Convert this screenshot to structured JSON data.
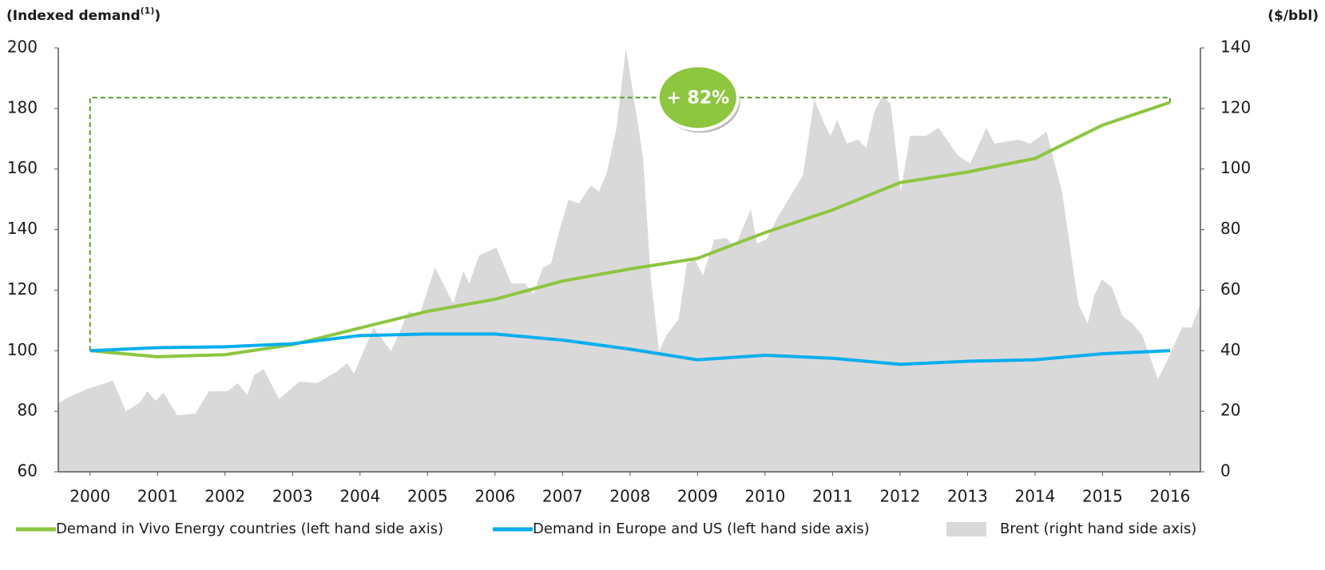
{
  "chart_data": {
    "type": "line",
    "y_label": "(Indexed demand(1))",
    "y2_label": "($/bbl)",
    "annotation": "+ 82%",
    "xlim": [
      1999.53,
      2016.45
    ],
    "xticks": [
      2000,
      2001,
      2002,
      2003,
      2004,
      2005,
      2006,
      2007,
      2008,
      2009,
      2010,
      2011,
      2012,
      2013,
      2014,
      2015,
      2016
    ],
    "ylim": [
      60,
      200
    ],
    "yticks": [
      60,
      80,
      100,
      120,
      140,
      160,
      180,
      200
    ],
    "y2lim": [
      0,
      140
    ],
    "y2ticks": [
      0,
      20,
      40,
      60,
      80,
      100,
      120,
      140
    ],
    "legend": "bottom",
    "series": [
      {
        "name": "Demand in Vivo Energy countries (left hand side axis)",
        "color": "#8dc63f",
        "type": "line",
        "x": [
          2000,
          2001,
          2002,
          2003,
          2004,
          2005,
          2006,
          2007,
          2008,
          2009,
          2010,
          2011,
          2012,
          2013,
          2014,
          2015,
          2016
        ],
        "values": [
          100,
          98,
          98.7,
          102,
          107.5,
          113,
          117,
          123,
          127,
          130.5,
          139,
          146.5,
          155.5,
          159,
          163.5,
          174.5,
          182
        ]
      },
      {
        "name": "Demand in Europe and US (left hand side axis)",
        "color": "#00aeef",
        "type": "line",
        "x": [
          2000,
          2001,
          2002,
          2003,
          2004,
          2005,
          2006,
          2007,
          2008,
          2009,
          2010,
          2011,
          2012,
          2013,
          2014,
          2015,
          2016
        ],
        "values": [
          100,
          101,
          101.3,
          102.3,
          105,
          105.5,
          105.5,
          103.5,
          100.5,
          97,
          98.5,
          97.5,
          95.5,
          96.5,
          97,
          99,
          100
        ]
      },
      {
        "name": "Brent (right hand side axis)",
        "color": "#d9d9d9",
        "type": "area",
        "axis": "y2",
        "x": [
          1999.53,
          1999.67,
          1999.96,
          2000.15,
          2000.34,
          2000.53,
          2000.73,
          2000.85,
          2000.97,
          2001.09,
          2001.29,
          2001.56,
          2001.76,
          2002.04,
          2002.19,
          2002.33,
          2002.43,
          2002.57,
          2002.8,
          2003.1,
          2003.37,
          2003.66,
          2003.81,
          2003.91,
          2004.2,
          2004.46,
          2004.72,
          2004.88,
          2005.11,
          2005.38,
          2005.53,
          2005.62,
          2005.76,
          2006.02,
          2006.24,
          2006.45,
          2006.57,
          2006.71,
          2006.83,
          2006.95,
          2007.09,
          2007.24,
          2007.42,
          2007.54,
          2007.66,
          2007.8,
          2007.94,
          2008.07,
          2008.19,
          2008.31,
          2008.43,
          2008.54,
          2008.72,
          2008.84,
          2008.96,
          2009.08,
          2009.25,
          2009.43,
          2009.55,
          2009.79,
          2009.88,
          2010.02,
          2010.2,
          2010.56,
          2010.73,
          2010.88,
          2010.97,
          2011.07,
          2011.21,
          2011.38,
          2011.5,
          2011.62,
          2011.74,
          2011.86,
          2012.01,
          2012.15,
          2012.39,
          2012.57,
          2012.86,
          2013.04,
          2013.28,
          2013.4,
          2013.75,
          2013.93,
          2014.17,
          2014.4,
          2014.64,
          2014.78,
          2014.88,
          2014.99,
          2015.14,
          2015.29,
          2015.44,
          2015.59,
          2015.82,
          2015.94,
          2016.18,
          2016.32,
          2016.45
        ],
        "values": [
          22.7,
          24.5,
          27.4,
          28.7,
          30.1,
          20.0,
          22.7,
          26.6,
          23.5,
          26.1,
          18.7,
          19.2,
          26.6,
          26.6,
          29.3,
          25.3,
          31.9,
          34.0,
          24.0,
          29.8,
          29.3,
          33.2,
          35.9,
          32.4,
          47.7,
          39.8,
          53.0,
          51.7,
          67.5,
          55.6,
          66.2,
          62.2,
          71.4,
          74.1,
          62.2,
          62.2,
          58.8,
          67.5,
          68.8,
          79.4,
          89.9,
          88.6,
          94.6,
          92.5,
          99.1,
          113.6,
          140.0,
          121.5,
          104.4,
          63.5,
          39.8,
          45.1,
          50.4,
          68.8,
          70.1,
          64.9,
          76.7,
          77.2,
          74.1,
          86.7,
          75.4,
          76.7,
          84.6,
          97.8,
          122.9,
          114.9,
          110.9,
          116.3,
          108.4,
          109.7,
          106.9,
          118.9,
          124.2,
          121.5,
          92.5,
          111.0,
          111.0,
          113.6,
          104.4,
          101.8,
          113.6,
          108.4,
          109.7,
          108.4,
          112.3,
          92.5,
          55.6,
          49.0,
          58.3,
          63.5,
          60.9,
          51.7,
          49.0,
          45.1,
          30.6,
          35.9,
          47.7,
          47.7,
          55.6
        ]
      }
    ]
  }
}
